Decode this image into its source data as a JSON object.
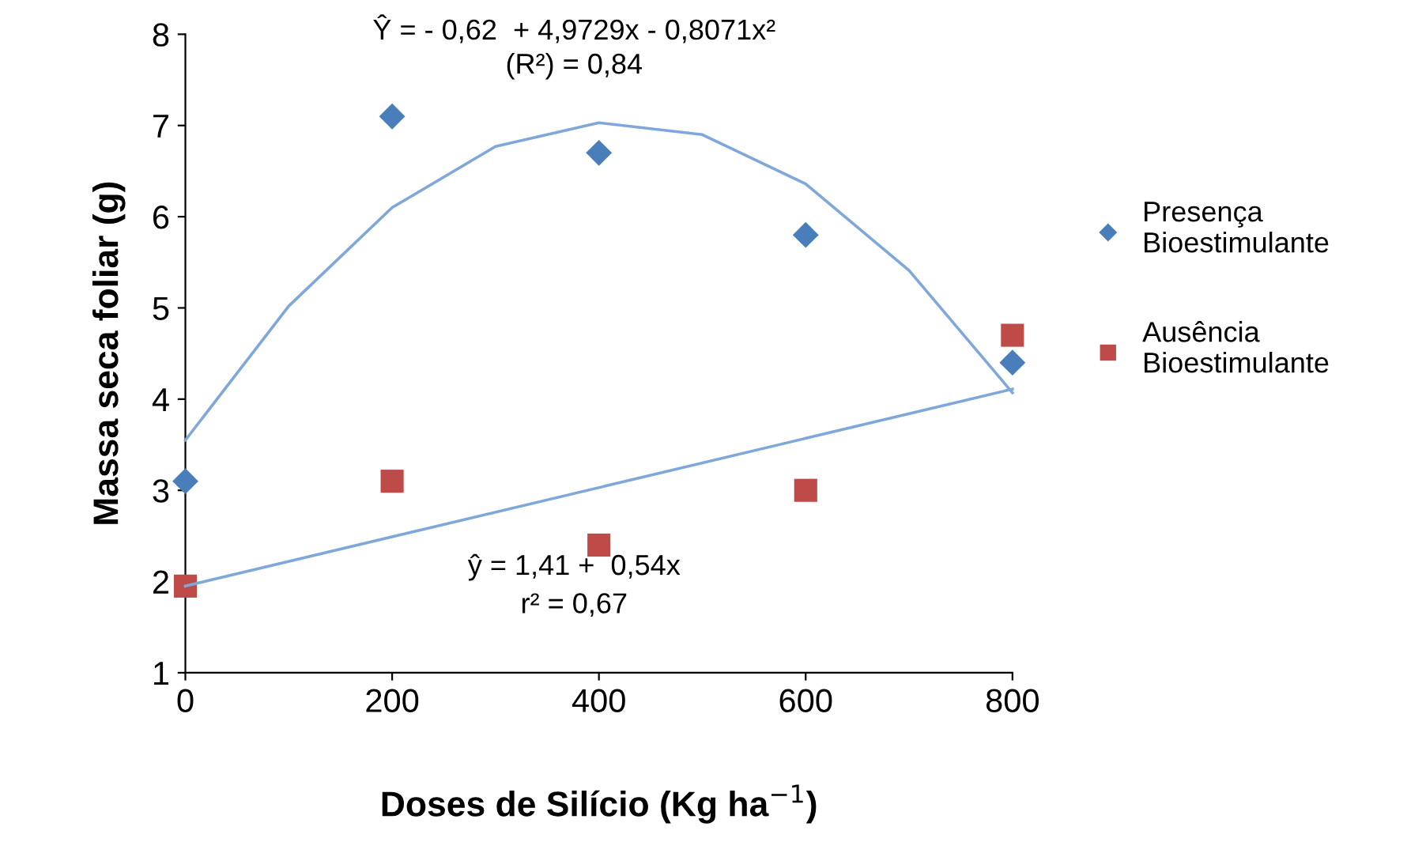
{
  "chart_data": {
    "type": "scatter",
    "xlabel": "Doses de Silício (Kg ha$^{−1}$)",
    "ylabel": "Massa seca foliar (g)",
    "x": [
      0,
      200,
      400,
      600,
      800
    ],
    "series": [
      {
        "name": "Presença\nBioestimulante",
        "color": "#4a7ebb",
        "marker": "diamond",
        "values": [
          3.1,
          7.1,
          6.7,
          5.8,
          4.4
        ]
      },
      {
        "name": "Ausência\nBioestimulante",
        "color": "#be4b48",
        "marker": "square",
        "values": [
          1.95,
          3.1,
          2.4,
          3.0,
          4.7
        ]
      },
      {
        "type": "line",
        "color": "#7fa7d9",
        "x": [
          0,
          100,
          200,
          300,
          400,
          500,
          600,
          700,
          800
        ],
        "values": [
          3.55,
          5.02,
          6.1,
          6.77,
          7.03,
          6.9,
          6.36,
          5.41,
          4.07
        ]
      },
      {
        "type": "line",
        "color": "#7fa7d9",
        "x": [
          0,
          800
        ],
        "values": [
          1.95,
          4.11
        ]
      }
    ],
    "annotations": [
      "Ŷ = - 0,62  + 4,9729x - 0,8071x²",
      "(R²) = 0,84",
      "ŷ = 1,41 +  0,54x",
      "r² = 0,67"
    ],
    "xlim": [
      0,
      800
    ],
    "xticks": [
      0,
      200,
      400,
      600,
      800
    ],
    "ylim": [
      1,
      8
    ],
    "yticks": [
      1,
      2,
      3,
      4,
      5,
      6,
      7,
      8
    ],
    "grid": false,
    "legend": "right"
  }
}
